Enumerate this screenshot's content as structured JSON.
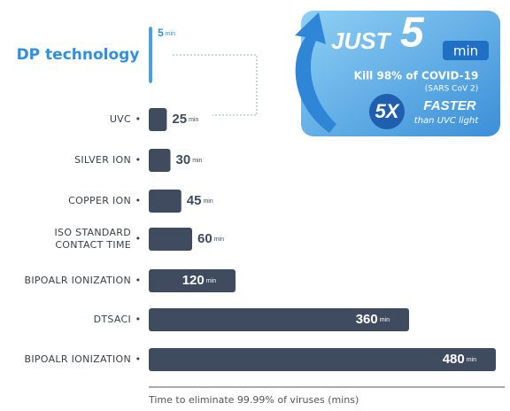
{
  "chart_data": {
    "type": "bar",
    "orientation": "horizontal",
    "categories": [
      "DP technology",
      "UVC",
      "SILVER ION",
      "COPPER ION",
      "ISO STANDARD CONTACT TIME",
      "BIPOALR IONIZATION",
      "DTSACI",
      "BIPOALR IONIZATION"
    ],
    "values": [
      5,
      25,
      30,
      45,
      60,
      120,
      360,
      480
    ],
    "unit": "min",
    "colors": [
      "#4a9fe0",
      "#3f4b5e",
      "#3f4b5e",
      "#3f4b5e",
      "#3f4b5e",
      "#3f4b5e",
      "#3f4b5e",
      "#3f4b5e"
    ],
    "xlim": [
      0,
      480
    ],
    "xlabel": "Time to eliminate 99.99% of viruses (mins)"
  },
  "callout": {
    "just": "JUST",
    "number": "5",
    "unit": "min",
    "kill": "Kill 98% of COVID-19",
    "virus": "(SARS CoV 2)",
    "factor": "5X",
    "faster": "FASTER",
    "than": "than UVC light"
  }
}
